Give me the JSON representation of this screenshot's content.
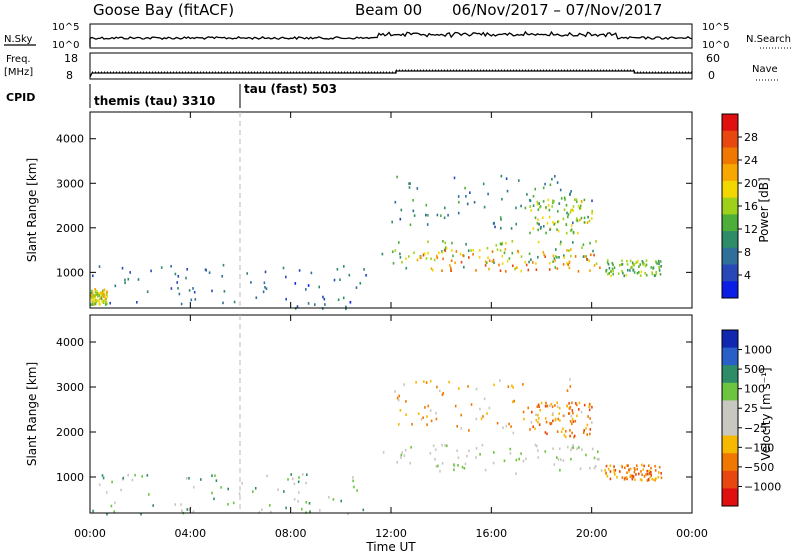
{
  "header": {
    "station": "Goose Bay (fitACF)",
    "beam": "Beam 00",
    "date_range": "06/Nov/2017 – 07/Nov/2017"
  },
  "status": {
    "nsky_label": "N.Sky",
    "nsky_ticks": [
      "10^5",
      "10^0"
    ],
    "nsearch_label": "N.Search",
    "nsearch_ticks": [
      "10^5",
      "10^0"
    ],
    "freq_label": "Freq.",
    "freq_unit": "[MHz]",
    "freq_ticks": [
      "18",
      "8"
    ],
    "nave_label": "Nave",
    "nave_ticks": [
      "60",
      "0"
    ],
    "cpid_label": "CPID",
    "cpid_modes": [
      {
        "label": "themis (tau) 3310",
        "start_hour": 0
      },
      {
        "label": "tau (fast) 503",
        "start_hour": 6.0
      }
    ]
  },
  "chart_data": [
    {
      "type": "heatmap",
      "name": "power",
      "ylabel": "Slant Range [km]",
      "xlabel": "",
      "yticks": [
        "1000",
        "2000",
        "3000",
        "4000"
      ],
      "ylim": [
        200,
        4600
      ],
      "xlim_hours": [
        0,
        24
      ],
      "colorbar": {
        "label": "Power [dB]",
        "ticks": [
          "4",
          "8",
          "12",
          "16",
          "20",
          "24",
          "28"
        ],
        "range": [
          0,
          32
        ],
        "colors": [
          "#0a1ee6",
          "#2848b8",
          "#2f6f9a",
          "#2f8c68",
          "#4dae3a",
          "#9ed21a",
          "#f2d800",
          "#f7a800",
          "#f07800",
          "#e84810",
          "#e01010"
        ]
      },
      "echo_regions": [
        {
          "t0": 0.0,
          "t1": 11.0,
          "r0": 200,
          "r1": 1200,
          "level": 6
        },
        {
          "t0": 0.0,
          "t1": 0.7,
          "r0": 300,
          "r1": 650,
          "level": 18
        },
        {
          "t0": 11.6,
          "t1": 20.4,
          "r0": 1100,
          "r1": 1750,
          "level": 14
        },
        {
          "t0": 13.0,
          "t1": 20.3,
          "r0": 1050,
          "r1": 1550,
          "level": 24
        },
        {
          "t0": 17.5,
          "t1": 20.0,
          "r0": 1900,
          "r1": 2700,
          "level": 16
        },
        {
          "t0": 20.5,
          "t1": 22.8,
          "r0": 950,
          "r1": 1300,
          "level": 14
        },
        {
          "t0": 12.0,
          "t1": 20.0,
          "r0": 2000,
          "r1": 3200,
          "level": 9
        }
      ]
    },
    {
      "type": "heatmap",
      "name": "velocity",
      "ylabel": "Slant Range [km]",
      "xlabel": "Time UT",
      "yticks": [
        "1000",
        "2000",
        "3000",
        "4000"
      ],
      "ylim": [
        200,
        4600
      ],
      "xlim_hours": [
        0,
        24
      ],
      "xticks": [
        "00:00",
        "04:00",
        "08:00",
        "12:00",
        "16:00",
        "20:00",
        "00:00"
      ],
      "colorbar": {
        "label": "Velocity [m s⁻¹]",
        "ticks": [
          "1000",
          "500",
          "100",
          "25",
          "−25",
          "−100",
          "−500",
          "−1000"
        ],
        "colors": [
          "#1028b0",
          "#2860c8",
          "#2f8c68",
          "#6cc440",
          "#c8c8c0",
          "#c8c8c0",
          "#f7b800",
          "#f07800",
          "#e84810",
          "#e01010"
        ]
      },
      "echo_regions": [
        {
          "t0": 0.0,
          "t1": 11.0,
          "r0": 200,
          "r1": 1100,
          "level": 3
        },
        {
          "t0": 11.6,
          "t1": 20.4,
          "r0": 1100,
          "r1": 1750,
          "level": 4
        },
        {
          "t0": 17.5,
          "t1": 20.0,
          "r0": 1900,
          "r1": 2700,
          "level": 7
        },
        {
          "t0": 20.5,
          "t1": 22.8,
          "r0": 950,
          "r1": 1300,
          "level": 7
        },
        {
          "t0": 12.0,
          "t1": 20.0,
          "r0": 2000,
          "r1": 3200,
          "level": 6
        }
      ]
    }
  ]
}
